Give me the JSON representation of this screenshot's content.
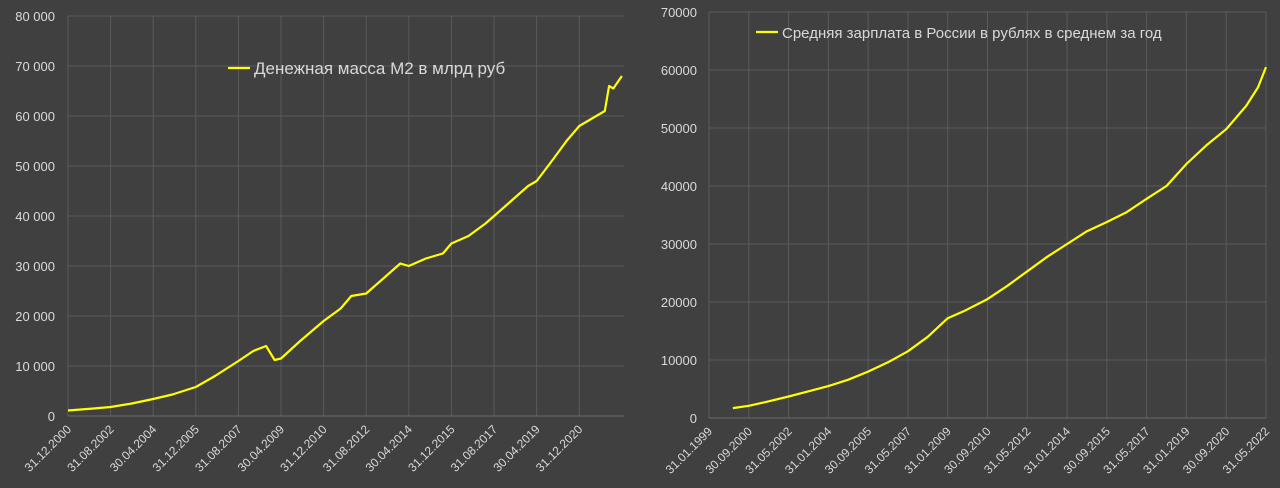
{
  "colors": {
    "background": "#404040",
    "line": "#ffff00",
    "grid": "#5a5a5a",
    "text": "#d9d9d9"
  },
  "chart_data": [
    {
      "type": "line",
      "title": "",
      "legend": "Денежная масса М2 в млрд руб",
      "legend_placement": "top-center",
      "grid": "vertical and horizontal",
      "ylim": [
        0,
        80000
      ],
      "xlim": [
        "2000-12",
        "2022-09"
      ],
      "y_ticks": [
        0,
        10000,
        20000,
        30000,
        40000,
        50000,
        60000,
        70000,
        80000
      ],
      "y_tick_labels": [
        "0",
        "10 000",
        "20 000",
        "30 000",
        "40 000",
        "50 000",
        "60 000",
        "70 000",
        "80 000"
      ],
      "x_tick_labels": [
        "31.12.2000",
        "31.08.2002",
        "30.04.2004",
        "31.12.2005",
        "31.08.2007",
        "30.04.2009",
        "31.12.2010",
        "31.08.2012",
        "30.04.2014",
        "31.12.2015",
        "31.08.2017",
        "30.04.2019",
        "31.12.2020"
      ],
      "points": [
        [
          "2000-12",
          1100
        ],
        [
          "2001-12",
          1500
        ],
        [
          "2002-08",
          1800
        ],
        [
          "2003-06",
          2500
        ],
        [
          "2004-04",
          3400
        ],
        [
          "2005-01",
          4300
        ],
        [
          "2005-12",
          5800
        ],
        [
          "2006-09",
          8000
        ],
        [
          "2007-08",
          11000
        ],
        [
          "2008-03",
          13000
        ],
        [
          "2008-09",
          14000
        ],
        [
          "2009-01",
          11200
        ],
        [
          "2009-04",
          11500
        ],
        [
          "2010-01",
          15000
        ],
        [
          "2010-12",
          19000
        ],
        [
          "2011-08",
          21500
        ],
        [
          "2012-01",
          24000
        ],
        [
          "2012-08",
          24500
        ],
        [
          "2013-04",
          27500
        ],
        [
          "2013-12",
          30500
        ],
        [
          "2014-04",
          30000
        ],
        [
          "2014-12",
          31500
        ],
        [
          "2015-08",
          32500
        ],
        [
          "2015-12",
          34500
        ],
        [
          "2016-08",
          36000
        ],
        [
          "2017-04",
          38500
        ],
        [
          "2017-08",
          40000
        ],
        [
          "2018-04",
          43000
        ],
        [
          "2018-12",
          46000
        ],
        [
          "2019-04",
          47000
        ],
        [
          "2019-12",
          51500
        ],
        [
          "2020-06",
          55000
        ],
        [
          "2020-12",
          58000
        ],
        [
          "2021-06",
          59500
        ],
        [
          "2021-12",
          61000
        ],
        [
          "2022-02",
          66000
        ],
        [
          "2022-04",
          65500
        ],
        [
          "2022-08",
          68000
        ]
      ]
    },
    {
      "type": "line",
      "title": "",
      "legend": "Средняя зарплата в России в рублях в среднем за год",
      "legend_placement": "top-left",
      "grid": "vertical and horizontal",
      "ylim": [
        0,
        70000
      ],
      "xlim": [
        "1999-01",
        "2022-05"
      ],
      "y_ticks": [
        0,
        10000,
        20000,
        30000,
        40000,
        50000,
        60000,
        70000
      ],
      "y_tick_labels": [
        "0",
        "10000",
        "20000",
        "30000",
        "40000",
        "50000",
        "60000",
        "70000"
      ],
      "x_tick_labels": [
        "31.01.1999",
        "30.09.2000",
        "31.05.2002",
        "31.01.2004",
        "30.09.2005",
        "31.05.2007",
        "31.01.2009",
        "30.09.2010",
        "31.05.2012",
        "31.01.2014",
        "30.09.2015",
        "31.05.2017",
        "31.01.2019",
        "30.09.2020",
        "31.05.2022"
      ],
      "points": [
        [
          "2000-01",
          1700
        ],
        [
          "2000-09",
          2100
        ],
        [
          "2001-06",
          2800
        ],
        [
          "2002-05",
          3700
        ],
        [
          "2003-03",
          4600
        ],
        [
          "2004-01",
          5500
        ],
        [
          "2004-11",
          6600
        ],
        [
          "2005-09",
          8000
        ],
        [
          "2006-07",
          9600
        ],
        [
          "2007-05",
          11500
        ],
        [
          "2008-03",
          14000
        ],
        [
          "2009-01",
          17200
        ],
        [
          "2009-09",
          18400
        ],
        [
          "2010-09",
          20500
        ],
        [
          "2011-07",
          22800
        ],
        [
          "2012-05",
          25300
        ],
        [
          "2013-03",
          27800
        ],
        [
          "2014-01",
          30000
        ],
        [
          "2014-11",
          32200
        ],
        [
          "2015-09",
          33800
        ],
        [
          "2016-07",
          35500
        ],
        [
          "2017-05",
          37800
        ],
        [
          "2018-03",
          40000
        ],
        [
          "2019-01",
          43800
        ],
        [
          "2019-11",
          47000
        ],
        [
          "2020-09",
          49800
        ],
        [
          "2021-07",
          53800
        ],
        [
          "2022-01",
          57000
        ],
        [
          "2022-05",
          60500
        ]
      ]
    }
  ]
}
